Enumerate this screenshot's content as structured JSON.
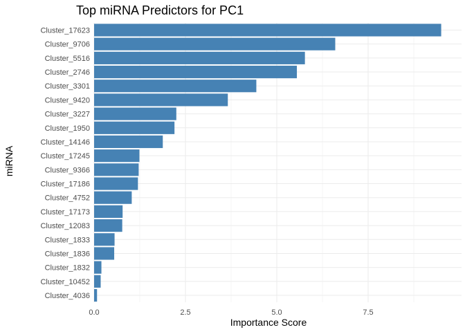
{
  "chart_data": {
    "type": "bar",
    "orientation": "horizontal",
    "title": "Top miRNA Predictors for PC1",
    "xlabel": "Importance Score",
    "ylabel": "miRNA",
    "categories": [
      "Cluster_17623",
      "Cluster_9706",
      "Cluster_5516",
      "Cluster_2746",
      "Cluster_3301",
      "Cluster_9420",
      "Cluster_3227",
      "Cluster_1950",
      "Cluster_14146",
      "Cluster_17245",
      "Cluster_9366",
      "Cluster_17186",
      "Cluster_4752",
      "Cluster_17173",
      "Cluster_12083",
      "Cluster_1833",
      "Cluster_1836",
      "Cluster_1832",
      "Cluster_10452",
      "Cluster_4036"
    ],
    "values": [
      9.5,
      6.6,
      5.77,
      5.55,
      4.44,
      3.66,
      2.25,
      2.2,
      1.88,
      1.24,
      1.22,
      1.2,
      1.03,
      0.78,
      0.77,
      0.56,
      0.55,
      0.2,
      0.18,
      0.08
    ],
    "xlim": [
      0,
      9.5
    ],
    "xticks": [
      "0.0",
      "2.5",
      "5.0",
      "7.5"
    ],
    "bar_color": "#4682B4",
    "grid": true,
    "legend": "none"
  }
}
